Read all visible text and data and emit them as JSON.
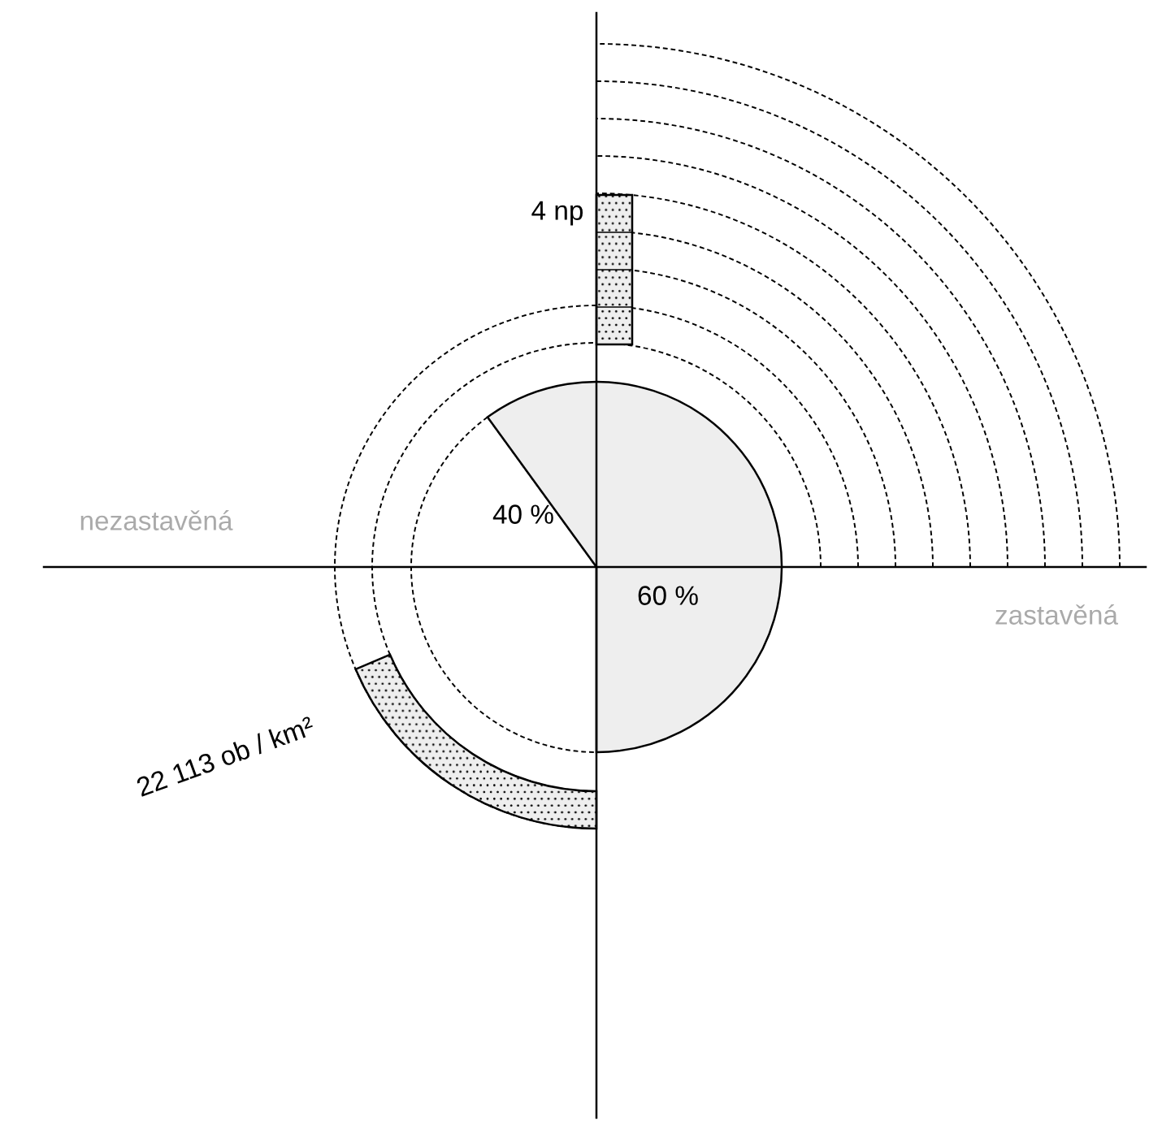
{
  "chart_data": {
    "type": "pie",
    "categories": [
      null,
      null
    ],
    "values": [
      40,
      60
    ],
    "colors": [
      "#ffffff",
      "#eeeeee"
    ],
    "value_labels": [
      "40 %",
      "60 %"
    ],
    "annotations": [
      "4 np",
      "22 113 ob / km²",
      "nezastavěná",
      "zastavěná"
    ]
  }
}
